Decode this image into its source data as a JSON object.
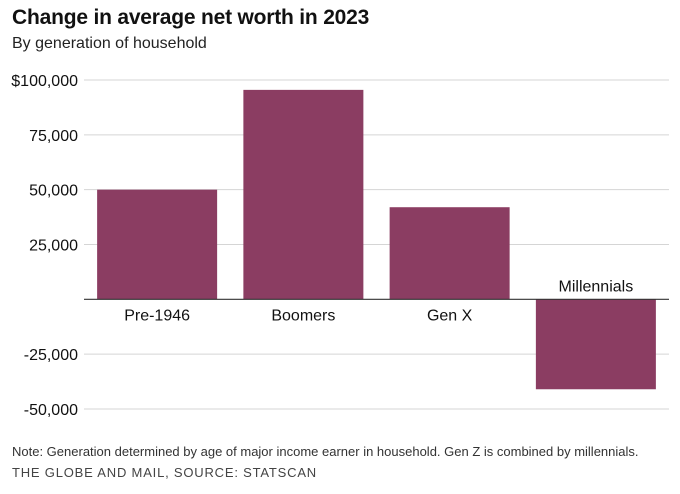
{
  "header": {
    "title": "Change in average net worth in 2023",
    "subtitle": "By generation of household"
  },
  "footer": {
    "note": "Note: Generation determined by age of major income earner in household. Gen Z is combined by millennials.",
    "source": "THE GLOBE AND MAIL, SOURCE: STATSCAN"
  },
  "colors": {
    "bar": "#8b3d62",
    "grid": "#d5d5d5",
    "baseline": "#333333"
  },
  "chart_data": {
    "type": "bar",
    "title": "Change in average net worth in 2023",
    "subtitle": "By generation of household",
    "categories": [
      "Pre-1946",
      "Boomers",
      "Gen X",
      "Millennials"
    ],
    "values": [
      50000,
      95500,
      42000,
      -41000
    ],
    "ylim": [
      -50000,
      100000
    ],
    "yticks": [
      100000,
      75000,
      50000,
      25000,
      -25000,
      -50000
    ],
    "ytick_labels": [
      "$100,000",
      "75,000",
      "50,000",
      "25,000",
      "-25,000",
      "-50,000"
    ],
    "grid": true,
    "legend": "none"
  }
}
